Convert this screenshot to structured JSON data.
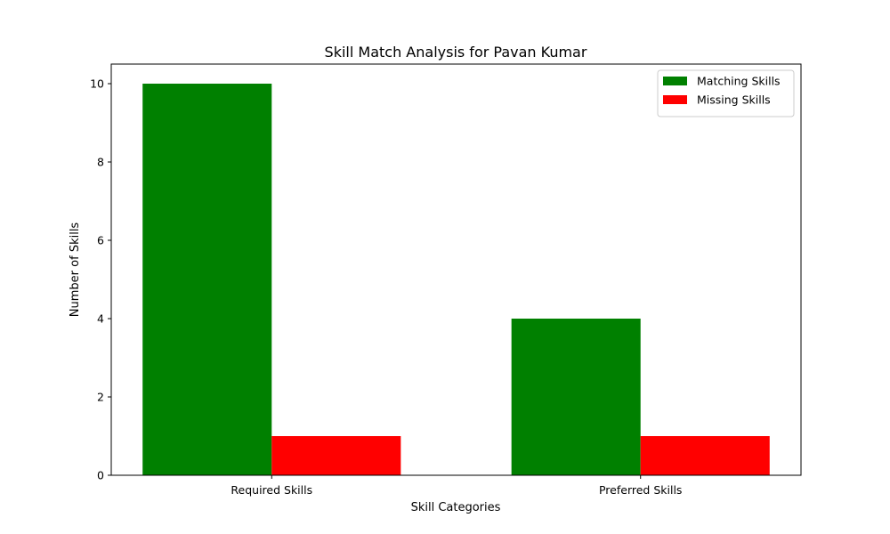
{
  "chart_data": {
    "type": "bar",
    "title": "Skill Match Analysis for Pavan Kumar",
    "xlabel": "Skill Categories",
    "ylabel": "Number of Skills",
    "categories": [
      "Required Skills",
      "Preferred Skills"
    ],
    "series": [
      {
        "name": "Matching Skills",
        "values": [
          10,
          4
        ],
        "color": "#008000"
      },
      {
        "name": "Missing Skills",
        "values": [
          1,
          1
        ],
        "color": "#ff0000"
      }
    ],
    "ylim": [
      0,
      10.5
    ],
    "yticks": [
      0,
      2,
      4,
      6,
      8,
      10
    ],
    "grid": false,
    "legend_position": "top-right"
  }
}
